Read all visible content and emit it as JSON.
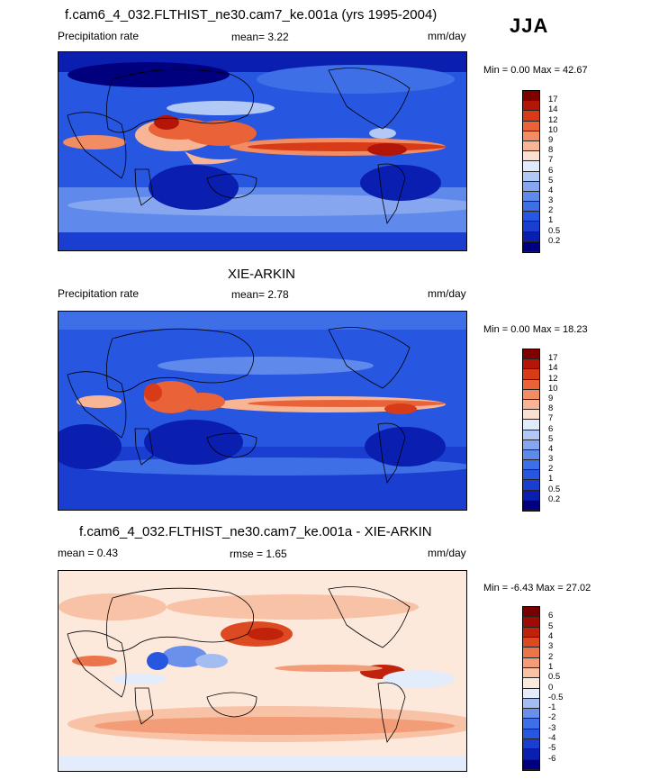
{
  "season": "JJA",
  "panels": [
    {
      "title": "f.cam6_4_032.FLTHIST_ne30.cam7_ke.001a (yrs 1995-2004)",
      "left_label": "Precipitation rate",
      "center_label": "mean=   3.22",
      "units": "mm/day",
      "minmax": "Min =   0.00 Max =  42.67",
      "colorbar_levels": [
        "0.2",
        "0.5",
        "1",
        "2",
        "3",
        "4",
        "5",
        "6",
        "7",
        "8",
        "9",
        "10",
        "12",
        "14",
        "17"
      ],
      "colors": [
        "#00007f",
        "#0a1fb0",
        "#1a3fd0",
        "#2756e0",
        "#3e6fe6",
        "#5f89ea",
        "#86a7ef",
        "#b2c8f5",
        "#e0ebfb",
        "#fbe0cf",
        "#f7b595",
        "#f28c62",
        "#ea6338",
        "#d83b18",
        "#b31608",
        "#800000"
      ]
    },
    {
      "title": "XIE-ARKIN",
      "left_label": "Precipitation rate",
      "center_label": "mean=   2.78",
      "units": "mm/day",
      "minmax": "Min =   0.00 Max =  18.23",
      "colorbar_levels": [
        "0.2",
        "0.5",
        "1",
        "2",
        "3",
        "4",
        "5",
        "6",
        "7",
        "8",
        "9",
        "10",
        "12",
        "14",
        "17"
      ],
      "colors": [
        "#00007f",
        "#0a1fb0",
        "#1a3fd0",
        "#2756e0",
        "#3e6fe6",
        "#5f89ea",
        "#86a7ef",
        "#b2c8f5",
        "#e0ebfb",
        "#fbe0cf",
        "#f7b595",
        "#f28c62",
        "#ea6338",
        "#d83b18",
        "#b31608",
        "#800000"
      ]
    },
    {
      "title": "f.cam6_4_032.FLTHIST_ne30.cam7_ke.001a - XIE-ARKIN",
      "left_label": "mean =   0.43",
      "center_label": "rmse =   1.65",
      "units": "mm/day",
      "minmax": "Min =  -6.43 Max =  27.02",
      "colorbar_levels": [
        "-6",
        "-5",
        "-4",
        "-3",
        "-2",
        "-1",
        "-0.5",
        "0",
        "0.5",
        "1",
        "2",
        "3",
        "4",
        "5",
        "6"
      ],
      "colors": [
        "#00007f",
        "#0a1fb0",
        "#1a3fd0",
        "#2756e0",
        "#3e6fe6",
        "#6a90eb",
        "#a3bdf3",
        "#e3ecfb",
        "#fde8dc",
        "#f8c2a6",
        "#f39c78",
        "#ec744a",
        "#dd4a22",
        "#c0220c",
        "#a00a04",
        "#780000"
      ]
    }
  ]
}
